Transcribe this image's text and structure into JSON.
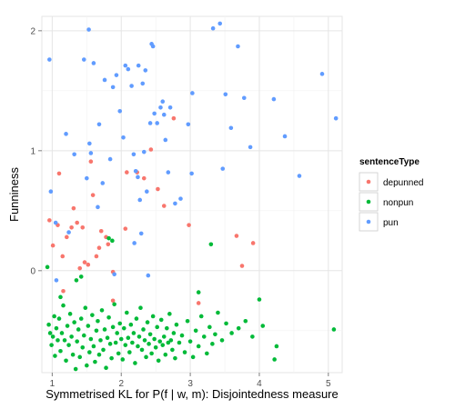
{
  "chart_data": {
    "type": "scatter",
    "xlabel": "Symmetrised KL for P(f | w, m): Disjointedness measure",
    "ylabel": "Funniness",
    "xlim": [
      0.85,
      5.2
    ],
    "ylim": [
      -0.85,
      2.12
    ],
    "x_ticks": [
      1,
      2,
      3,
      4,
      5
    ],
    "y_ticks": [
      0,
      1,
      2
    ],
    "grid": true,
    "legend": {
      "title": "sentenceType",
      "placement": "right",
      "entries": [
        "depunned",
        "nonpun",
        "pun"
      ]
    },
    "series": [
      {
        "name": "depunned",
        "color": "#f8766d",
        "points": [
          [
            0.96,
            0.42
          ],
          [
            1.1,
            0.81
          ],
          [
            1.01,
            0.21
          ],
          [
            1.08,
            0.38
          ],
          [
            1.15,
            0.12
          ],
          [
            1.21,
            0.28
          ],
          [
            1.28,
            0.36
          ],
          [
            1.31,
            0.52
          ],
          [
            1.36,
            0.4
          ],
          [
            1.44,
            0.36
          ],
          [
            1.4,
            0.02
          ],
          [
            1.47,
            0.07
          ],
          [
            1.52,
            0.05
          ],
          [
            1.56,
            0.91
          ],
          [
            1.59,
            0.63
          ],
          [
            1.64,
            0.12
          ],
          [
            1.68,
            0.19
          ],
          [
            1.71,
            0.33
          ],
          [
            1.78,
            0.28
          ],
          [
            1.81,
            0.22
          ],
          [
            1.88,
            -0.01
          ],
          [
            2.06,
            0.35
          ],
          [
            2.08,
            0.82
          ],
          [
            2.23,
            0.82
          ],
          [
            2.33,
            0.77
          ],
          [
            2.43,
            1.01
          ],
          [
            2.53,
            0.68
          ],
          [
            2.62,
            0.54
          ],
          [
            2.76,
            1.27
          ],
          [
            2.98,
            0.38
          ],
          [
            3.12,
            -0.27
          ],
          [
            3.67,
            0.29
          ],
          [
            3.75,
            0.04
          ],
          [
            3.91,
            0.23
          ],
          [
            1.16,
            -0.17
          ],
          [
            1.88,
            -0.25
          ]
        ]
      },
      {
        "name": "nonpun",
        "color": "#00ba38",
        "points": [
          [
            0.93,
            0.03
          ],
          [
            0.95,
            -0.45
          ],
          [
            0.97,
            -0.52
          ],
          [
            0.99,
            -0.62
          ],
          [
            1.01,
            -0.55
          ],
          [
            1.03,
            -0.38
          ],
          [
            1.04,
            -0.71
          ],
          [
            1.06,
            -0.48
          ],
          [
            1.08,
            -0.58
          ],
          [
            1.1,
            -0.4
          ],
          [
            1.12,
            -0.67
          ],
          [
            1.14,
            -0.52
          ],
          [
            1.16,
            -0.29
          ],
          [
            1.18,
            -0.58
          ],
          [
            1.2,
            -0.75
          ],
          [
            1.22,
            -0.46
          ],
          [
            1.24,
            -0.62
          ],
          [
            1.26,
            -0.36
          ],
          [
            1.28,
            -0.55
          ],
          [
            1.3,
            -0.7
          ],
          [
            1.32,
            -0.43
          ],
          [
            1.34,
            -0.82
          ],
          [
            1.36,
            -0.59
          ],
          [
            1.38,
            -0.49
          ],
          [
            1.4,
            -0.72
          ],
          [
            1.42,
            -0.4
          ],
          [
            1.44,
            -0.64
          ],
          [
            1.46,
            -0.54
          ],
          [
            1.48,
            -0.31
          ],
          [
            1.5,
            -0.79
          ],
          [
            1.52,
            -0.46
          ],
          [
            1.54,
            -0.68
          ],
          [
            1.56,
            -0.57
          ],
          [
            1.58,
            -0.37
          ],
          [
            1.6,
            -0.63
          ],
          [
            1.62,
            -0.76
          ],
          [
            1.64,
            -0.5
          ],
          [
            1.66,
            -0.42
          ],
          [
            1.68,
            -0.7
          ],
          [
            1.7,
            -0.58
          ],
          [
            1.72,
            -0.33
          ],
          [
            1.74,
            -0.66
          ],
          [
            1.76,
            -0.49
          ],
          [
            1.78,
            -0.81
          ],
          [
            1.8,
            -0.56
          ],
          [
            1.82,
            -0.39
          ],
          [
            1.84,
            -0.61
          ],
          [
            1.86,
            -0.73
          ],
          [
            1.88,
            -0.47
          ],
          [
            1.9,
            -0.28
          ],
          [
            1.92,
            -0.6
          ],
          [
            1.94,
            -0.52
          ],
          [
            1.96,
            -0.69
          ],
          [
            1.98,
            -0.44
          ],
          [
            2.0,
            -0.57
          ],
          [
            2.02,
            -0.74
          ],
          [
            2.04,
            -0.48
          ],
          [
            2.06,
            -0.62
          ],
          [
            2.08,
            -0.35
          ],
          [
            2.1,
            -0.56
          ],
          [
            2.12,
            -0.68
          ],
          [
            2.14,
            -0.45
          ],
          [
            2.16,
            -0.6
          ],
          [
            2.18,
            -0.52
          ],
          [
            2.2,
            -0.77
          ],
          [
            2.22,
            -0.4
          ],
          [
            2.24,
            -0.63
          ],
          [
            2.26,
            -0.55
          ],
          [
            2.28,
            -0.31
          ],
          [
            2.3,
            -0.66
          ],
          [
            2.32,
            -0.49
          ],
          [
            2.34,
            -0.58
          ],
          [
            2.36,
            -0.72
          ],
          [
            2.38,
            -0.43
          ],
          [
            2.4,
            -0.61
          ],
          [
            2.42,
            -0.53
          ],
          [
            2.44,
            -0.69
          ],
          [
            2.46,
            -0.38
          ],
          [
            2.48,
            -0.57
          ],
          [
            2.5,
            -0.64
          ],
          [
            2.52,
            -0.47
          ],
          [
            2.54,
            -0.75
          ],
          [
            2.56,
            -0.59
          ],
          [
            2.58,
            -0.41
          ],
          [
            2.6,
            -0.62
          ],
          [
            2.62,
            -0.55
          ],
          [
            2.64,
            -0.7
          ],
          [
            2.66,
            -0.48
          ],
          [
            2.68,
            -0.6
          ],
          [
            2.7,
            -0.36
          ],
          [
            2.72,
            -0.58
          ],
          [
            2.74,
            -0.66
          ],
          [
            2.76,
            -0.52
          ],
          [
            2.78,
            -0.73
          ],
          [
            2.8,
            -0.45
          ],
          [
            2.84,
            -0.6
          ],
          [
            2.88,
            -0.54
          ],
          [
            2.92,
            -0.68
          ],
          [
            2.96,
            -0.42
          ],
          [
            3.0,
            -0.59
          ],
          [
            3.04,
            -0.72
          ],
          [
            3.08,
            -0.5
          ],
          [
            3.12,
            -0.63
          ],
          [
            3.16,
            -0.38
          ],
          [
            3.2,
            -0.55
          ],
          [
            3.24,
            -0.69
          ],
          [
            3.28,
            -0.47
          ],
          [
            3.32,
            -0.61
          ],
          [
            3.36,
            -0.53
          ],
          [
            3.4,
            -0.35
          ],
          [
            3.46,
            -0.58
          ],
          [
            3.52,
            -0.44
          ],
          [
            3.6,
            -0.52
          ],
          [
            3.7,
            -0.48
          ],
          [
            3.8,
            -0.42
          ],
          [
            3.9,
            -0.55
          ],
          [
            4.0,
            -0.24
          ],
          [
            4.05,
            -0.46
          ],
          [
            4.22,
            -0.74
          ],
          [
            4.25,
            -0.63
          ],
          [
            5.08,
            -0.49
          ],
          [
            1.82,
            0.27
          ],
          [
            1.87,
            0.25
          ],
          [
            1.12,
            -0.22
          ],
          [
            1.35,
            -0.08
          ],
          [
            3.12,
            -0.18
          ],
          [
            3.3,
            0.22
          ],
          [
            1.42,
            -0.05
          ]
        ]
      },
      {
        "name": "pun",
        "color": "#619cff",
        "points": [
          [
            0.96,
            1.76
          ],
          [
            0.98,
            0.66
          ],
          [
            1.05,
            0.4
          ],
          [
            1.2,
            1.14
          ],
          [
            1.24,
            0.32
          ],
          [
            1.32,
            0.97
          ],
          [
            1.46,
            1.76
          ],
          [
            1.5,
            0.77
          ],
          [
            1.53,
            2.01
          ],
          [
            1.54,
            1.06
          ],
          [
            1.56,
            0.98
          ],
          [
            1.6,
            1.73
          ],
          [
            1.66,
            0.53
          ],
          [
            1.68,
            1.22
          ],
          [
            1.73,
            0.73
          ],
          [
            1.76,
            1.59
          ],
          [
            1.84,
            0.93
          ],
          [
            1.88,
            1.53
          ],
          [
            1.93,
            1.63
          ],
          [
            1.98,
            1.33
          ],
          [
            2.03,
            1.11
          ],
          [
            2.06,
            1.71
          ],
          [
            2.1,
            1.68
          ],
          [
            2.15,
            1.54
          ],
          [
            2.18,
            0.97
          ],
          [
            2.19,
            0.23
          ],
          [
            2.21,
            0.83
          ],
          [
            2.24,
            0.78
          ],
          [
            2.25,
            1.71
          ],
          [
            2.27,
            0.59
          ],
          [
            2.29,
            0.31
          ],
          [
            2.31,
            1.56
          ],
          [
            2.33,
            0.99
          ],
          [
            2.35,
            1.67
          ],
          [
            2.37,
            0.66
          ],
          [
            2.39,
            -0.04
          ],
          [
            2.42,
            1.23
          ],
          [
            2.44,
            1.89
          ],
          [
            2.46,
            1.87
          ],
          [
            2.48,
            1.31
          ],
          [
            2.52,
            1.23
          ],
          [
            2.57,
            1.36
          ],
          [
            2.6,
            1.41
          ],
          [
            2.62,
            1.3
          ],
          [
            2.64,
            1.09
          ],
          [
            2.68,
            0.82
          ],
          [
            2.71,
            1.36
          ],
          [
            2.78,
            0.56
          ],
          [
            2.86,
            0.6
          ],
          [
            2.97,
            1.22
          ],
          [
            3.02,
            0.81
          ],
          [
            3.03,
            1.48
          ],
          [
            3.33,
            2.02
          ],
          [
            3.43,
            2.06
          ],
          [
            3.47,
            0.85
          ],
          [
            3.51,
            1.47
          ],
          [
            3.59,
            1.19
          ],
          [
            3.69,
            1.87
          ],
          [
            3.78,
            1.44
          ],
          [
            3.87,
            1.03
          ],
          [
            4.21,
            1.43
          ],
          [
            4.37,
            1.12
          ],
          [
            4.58,
            0.79
          ],
          [
            4.91,
            1.64
          ],
          [
            5.11,
            1.27
          ],
          [
            1.9,
            -0.03
          ],
          [
            1.06,
            -0.08
          ]
        ]
      }
    ]
  }
}
